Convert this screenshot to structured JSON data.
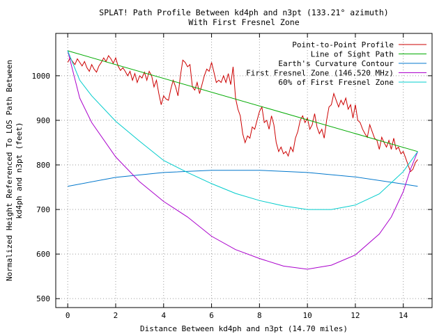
{
  "chart_data": {
    "type": "line",
    "title_line1": "SPLAT! Path Profile Between kd4ph and n3pt (133.21° azimuth)",
    "title_line2": "With First Fresnel Zone",
    "xlabel": "Distance Between kd4ph and n3pt (14.70 miles)",
    "ylabel_line1": "Normalized Height Referenced To LOS Path Between",
    "ylabel_line2": "kd4ph and n3pt (feet)",
    "xlim": [
      -0.5,
      15.2
    ],
    "ylim": [
      480,
      1095
    ],
    "x_ticks": [
      0,
      2,
      4,
      6,
      8,
      10,
      12,
      14
    ],
    "y_ticks": [
      500,
      600,
      700,
      800,
      900,
      1000
    ],
    "grid": true,
    "legend_position": "top-right",
    "series": [
      {
        "name": "Point-to-Point Profile",
        "color": "#cc0000",
        "points": [
          [
            0,
            1030
          ],
          [
            0.1,
            1040
          ],
          [
            0.2,
            1032
          ],
          [
            0.3,
            1025
          ],
          [
            0.4,
            1038
          ],
          [
            0.5,
            1030
          ],
          [
            0.6,
            1022
          ],
          [
            0.7,
            1032
          ],
          [
            0.8,
            1018
          ],
          [
            0.9,
            1010
          ],
          [
            1.0,
            1025
          ],
          [
            1.1,
            1015
          ],
          [
            1.2,
            1008
          ],
          [
            1.3,
            1022
          ],
          [
            1.4,
            1030
          ],
          [
            1.5,
            1040
          ],
          [
            1.6,
            1032
          ],
          [
            1.7,
            1045
          ],
          [
            1.8,
            1038
          ],
          [
            1.9,
            1028
          ],
          [
            2.0,
            1040
          ],
          [
            2.1,
            1022
          ],
          [
            2.2,
            1012
          ],
          [
            2.3,
            1018
          ],
          [
            2.4,
            1010
          ],
          [
            2.5,
            1000
          ],
          [
            2.6,
            1010
          ],
          [
            2.7,
            990
          ],
          [
            2.8,
            1005
          ],
          [
            2.9,
            985
          ],
          [
            3.0,
            1000
          ],
          [
            3.1,
            995
          ],
          [
            3.2,
            1008
          ],
          [
            3.3,
            990
          ],
          [
            3.4,
            1010
          ],
          [
            3.5,
            1000
          ],
          [
            3.6,
            975
          ],
          [
            3.7,
            990
          ],
          [
            3.8,
            960
          ],
          [
            3.9,
            935
          ],
          [
            4.0,
            955
          ],
          [
            4.1,
            948
          ],
          [
            4.2,
            945
          ],
          [
            4.3,
            970
          ],
          [
            4.4,
            990
          ],
          [
            4.5,
            975
          ],
          [
            4.6,
            955
          ],
          [
            4.7,
            1000
          ],
          [
            4.8,
            1035
          ],
          [
            4.9,
            1030
          ],
          [
            5.0,
            1020
          ],
          [
            5.1,
            1025
          ],
          [
            5.2,
            975
          ],
          [
            5.3,
            968
          ],
          [
            5.4,
            985
          ],
          [
            5.5,
            960
          ],
          [
            5.6,
            980
          ],
          [
            5.7,
            1000
          ],
          [
            5.8,
            1015
          ],
          [
            5.9,
            1010
          ],
          [
            6.0,
            1030
          ],
          [
            6.1,
            1008
          ],
          [
            6.2,
            985
          ],
          [
            6.3,
            990
          ],
          [
            6.4,
            985
          ],
          [
            6.5,
            1000
          ],
          [
            6.6,
            985
          ],
          [
            6.7,
            1005
          ],
          [
            6.8,
            980
          ],
          [
            6.9,
            1020
          ],
          [
            7.0,
            950
          ],
          [
            7.1,
            925
          ],
          [
            7.2,
            910
          ],
          [
            7.3,
            870
          ],
          [
            7.4,
            850
          ],
          [
            7.5,
            865
          ],
          [
            7.6,
            860
          ],
          [
            7.7,
            885
          ],
          [
            7.8,
            880
          ],
          [
            7.9,
            900
          ],
          [
            8.0,
            920
          ],
          [
            8.1,
            930
          ],
          [
            8.2,
            895
          ],
          [
            8.3,
            900
          ],
          [
            8.4,
            880
          ],
          [
            8.5,
            910
          ],
          [
            8.6,
            890
          ],
          [
            8.7,
            850
          ],
          [
            8.8,
            830
          ],
          [
            8.9,
            840
          ],
          [
            9.0,
            825
          ],
          [
            9.1,
            830
          ],
          [
            9.2,
            820
          ],
          [
            9.3,
            840
          ],
          [
            9.4,
            830
          ],
          [
            9.5,
            860
          ],
          [
            9.6,
            875
          ],
          [
            9.7,
            900
          ],
          [
            9.8,
            910
          ],
          [
            9.9,
            895
          ],
          [
            10.0,
            905
          ],
          [
            10.1,
            880
          ],
          [
            10.2,
            890
          ],
          [
            10.3,
            915
          ],
          [
            10.4,
            885
          ],
          [
            10.5,
            870
          ],
          [
            10.6,
            880
          ],
          [
            10.7,
            860
          ],
          [
            10.8,
            900
          ],
          [
            10.9,
            930
          ],
          [
            11.0,
            935
          ],
          [
            11.1,
            960
          ],
          [
            11.2,
            945
          ],
          [
            11.3,
            930
          ],
          [
            11.4,
            945
          ],
          [
            11.5,
            935
          ],
          [
            11.6,
            950
          ],
          [
            11.7,
            925
          ],
          [
            11.8,
            935
          ],
          [
            11.9,
            905
          ],
          [
            12.0,
            935
          ],
          [
            12.1,
            900
          ],
          [
            12.2,
            895
          ],
          [
            12.3,
            880
          ],
          [
            12.4,
            870
          ],
          [
            12.5,
            862
          ],
          [
            12.6,
            890
          ],
          [
            12.7,
            875
          ],
          [
            12.8,
            860
          ],
          [
            12.9,
            855
          ],
          [
            13.0,
            835
          ],
          [
            13.1,
            862
          ],
          [
            13.2,
            850
          ],
          [
            13.3,
            840
          ],
          [
            13.4,
            855
          ],
          [
            13.5,
            835
          ],
          [
            13.6,
            860
          ],
          [
            13.7,
            835
          ],
          [
            13.8,
            840
          ],
          [
            13.9,
            825
          ],
          [
            14.0,
            830
          ],
          [
            14.1,
            815
          ],
          [
            14.2,
            800
          ],
          [
            14.3,
            785
          ],
          [
            14.4,
            790
          ],
          [
            14.5,
            805
          ],
          [
            14.6,
            812
          ]
        ]
      },
      {
        "name": "Line of Sight Path",
        "color": "#00aa00",
        "points": [
          [
            0,
            1056
          ],
          [
            14.6,
            830
          ]
        ]
      },
      {
        "name": "Earth's Curvature Contour",
        "color": "#0077cc",
        "points": [
          [
            0,
            752
          ],
          [
            2,
            772
          ],
          [
            4,
            783
          ],
          [
            6,
            788
          ],
          [
            8,
            788
          ],
          [
            10,
            783
          ],
          [
            12,
            773
          ],
          [
            14,
            757
          ],
          [
            14.6,
            752
          ]
        ]
      },
      {
        "name": "First Fresnel Zone (146.520 MHz)",
        "color": "#aa00cc",
        "points": [
          [
            0,
            1056
          ],
          [
            0.5,
            950
          ],
          [
            1,
            895
          ],
          [
            2,
            818
          ],
          [
            3,
            762
          ],
          [
            4,
            718
          ],
          [
            5,
            683
          ],
          [
            6,
            640
          ],
          [
            7,
            610
          ],
          [
            8,
            590
          ],
          [
            9,
            573
          ],
          [
            10,
            566
          ],
          [
            11,
            575
          ],
          [
            12,
            598
          ],
          [
            13,
            645
          ],
          [
            13.5,
            683
          ],
          [
            14,
            740
          ],
          [
            14.3,
            790
          ],
          [
            14.6,
            830
          ]
        ]
      },
      {
        "name": "60% of First Fresnel Zone",
        "color": "#00cccc",
        "points": [
          [
            0,
            1056
          ],
          [
            0.5,
            990
          ],
          [
            1,
            955
          ],
          [
            2,
            898
          ],
          [
            3,
            853
          ],
          [
            4,
            810
          ],
          [
            5,
            783
          ],
          [
            6,
            758
          ],
          [
            7,
            736
          ],
          [
            8,
            720
          ],
          [
            9,
            708
          ],
          [
            10,
            700
          ],
          [
            11,
            700
          ],
          [
            12,
            710
          ],
          [
            13,
            735
          ],
          [
            14,
            785
          ],
          [
            14.6,
            830
          ]
        ]
      }
    ]
  }
}
